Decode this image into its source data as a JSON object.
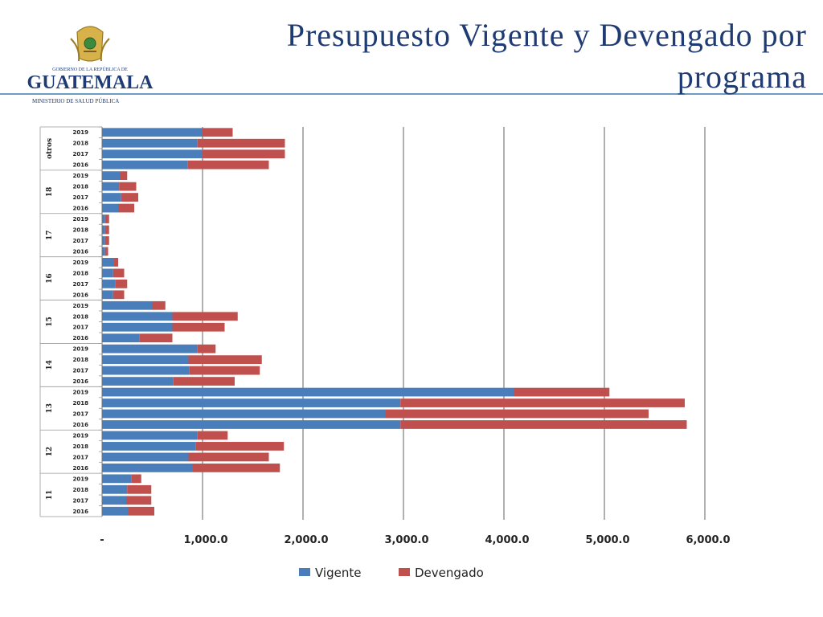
{
  "header": {
    "title": "Presupuesto Vigente y Devengado por programa",
    "logo_top": "GOBIERNO DE LA REPÚBLICA DE",
    "logo_main": "GUATEMALA",
    "logo_bottom": "MINISTERIO DE SALUD PÚBLICA"
  },
  "colors": {
    "vigente": "#4a7ebb",
    "devengado": "#c0504d",
    "title": "#1f3b73",
    "gridline": "#b0b0b0"
  },
  "chart_data": {
    "type": "bar",
    "orientation": "horizontal",
    "stacked": true,
    "xlim": [
      0,
      6000
    ],
    "x_ticks": [
      "-",
      "1,000.0",
      "2,000.0",
      "3,000.0",
      "4,000.0",
      "5,000.0",
      "6,000.0"
    ],
    "grid": true,
    "legend_position": "bottom",
    "series": [
      {
        "name": "Vigente"
      },
      {
        "name": "Devengado"
      }
    ],
    "groups": [
      {
        "label": "otros",
        "bars": [
          {
            "year": "2019",
            "values": [
              1000,
              300
            ]
          },
          {
            "year": "2018",
            "values": [
              950,
              870
            ]
          },
          {
            "year": "2017",
            "values": [
              1000,
              820
            ]
          },
          {
            "year": "2016",
            "values": [
              850,
              810
            ]
          }
        ]
      },
      {
        "label": "18",
        "bars": [
          {
            "year": "2019",
            "values": [
              180,
              70
            ]
          },
          {
            "year": "2018",
            "values": [
              170,
              170
            ]
          },
          {
            "year": "2017",
            "values": [
              190,
              170
            ]
          },
          {
            "year": "2016",
            "values": [
              160,
              160
            ]
          }
        ]
      },
      {
        "label": "17",
        "bars": [
          {
            "year": "2019",
            "values": [
              30,
              40
            ]
          },
          {
            "year": "2018",
            "values": [
              30,
              40
            ]
          },
          {
            "year": "2017",
            "values": [
              30,
              40
            ]
          },
          {
            "year": "2016",
            "values": [
              30,
              30
            ]
          }
        ]
      },
      {
        "label": "16",
        "bars": [
          {
            "year": "2019",
            "values": [
              120,
              40
            ]
          },
          {
            "year": "2018",
            "values": [
              110,
              110
            ]
          },
          {
            "year": "2017",
            "values": [
              130,
              120
            ]
          },
          {
            "year": "2016",
            "values": [
              110,
              110
            ]
          }
        ]
      },
      {
        "label": "15",
        "bars": [
          {
            "year": "2019",
            "values": [
              500,
              130
            ]
          },
          {
            "year": "2018",
            "values": [
              700,
              650
            ]
          },
          {
            "year": "2017",
            "values": [
              700,
              520
            ]
          },
          {
            "year": "2016",
            "values": [
              370,
              330
            ]
          }
        ]
      },
      {
        "label": "14",
        "bars": [
          {
            "year": "2019",
            "values": [
              950,
              180
            ]
          },
          {
            "year": "2018",
            "values": [
              860,
              730
            ]
          },
          {
            "year": "2017",
            "values": [
              870,
              700
            ]
          },
          {
            "year": "2016",
            "values": [
              710,
              610
            ]
          }
        ]
      },
      {
        "label": "13",
        "bars": [
          {
            "year": "2019",
            "values": [
              4100,
              950
            ]
          },
          {
            "year": "2018",
            "values": [
              2970,
              2830
            ]
          },
          {
            "year": "2017",
            "values": [
              2820,
              2620
            ]
          },
          {
            "year": "2016",
            "values": [
              2970,
              2850
            ]
          }
        ]
      },
      {
        "label": "12",
        "bars": [
          {
            "year": "2019",
            "values": [
              950,
              300
            ]
          },
          {
            "year": "2018",
            "values": [
              930,
              880
            ]
          },
          {
            "year": "2017",
            "values": [
              860,
              800
            ]
          },
          {
            "year": "2016",
            "values": [
              900,
              870
            ]
          }
        ]
      },
      {
        "label": "11",
        "bars": [
          {
            "year": "2019",
            "values": [
              290,
              100
            ]
          },
          {
            "year": "2018",
            "values": [
              250,
              240
            ]
          },
          {
            "year": "2017",
            "values": [
              240,
              250
            ]
          },
          {
            "year": "2016",
            "values": [
              260,
              260
            ]
          }
        ]
      }
    ]
  }
}
